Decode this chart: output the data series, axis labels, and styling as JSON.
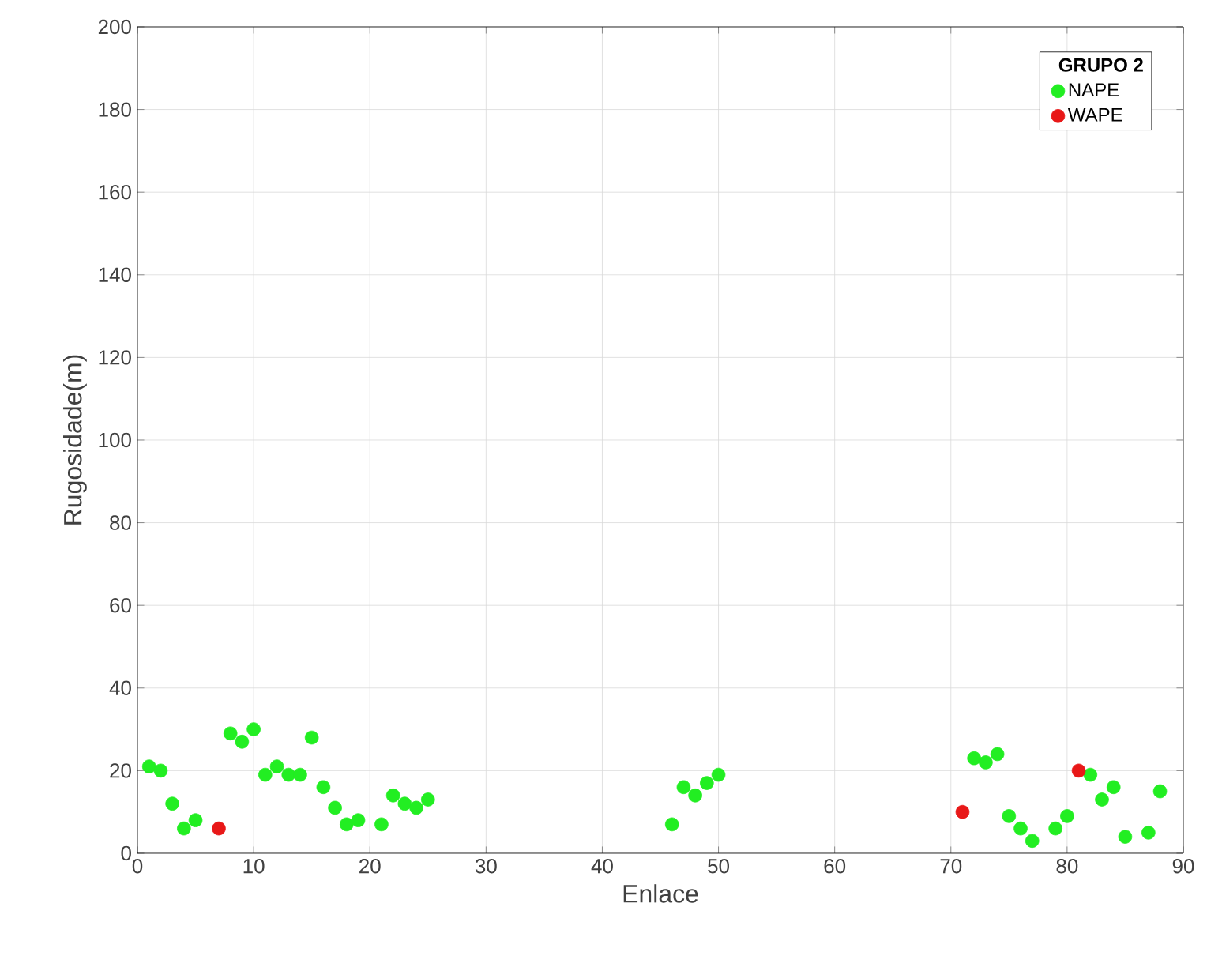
{
  "chart_data": {
    "type": "scatter",
    "xlabel": "Enlace",
    "ylabel": "Rugosidade(m)",
    "legend_title": "GRUPO 2",
    "xlim": [
      0,
      90
    ],
    "ylim": [
      0,
      200
    ],
    "xticks": [
      0,
      10,
      20,
      30,
      40,
      50,
      60,
      70,
      80,
      90
    ],
    "yticks": [
      0,
      20,
      40,
      60,
      80,
      100,
      120,
      140,
      160,
      180,
      200
    ],
    "grid": true,
    "legend": "top right",
    "marker": "circle",
    "series": [
      {
        "name": "NAPE",
        "color": "#22ee22",
        "x": [
          1,
          2,
          3,
          4,
          5,
          8,
          9,
          10,
          11,
          12,
          13,
          14,
          15,
          16,
          17,
          18,
          19,
          21,
          22,
          23,
          24,
          25,
          46,
          47,
          48,
          49,
          50,
          72,
          73,
          74,
          75,
          76,
          77,
          79,
          80,
          82,
          83,
          84,
          85,
          87,
          88
        ],
        "values": [
          21,
          20,
          12,
          6,
          8,
          29,
          27,
          30,
          19,
          21,
          19,
          19,
          28,
          16,
          11,
          7,
          8,
          7,
          14,
          12,
          11,
          13,
          7,
          16,
          14,
          17,
          19,
          23,
          22,
          24,
          9,
          6,
          3,
          6,
          9,
          19,
          13,
          16,
          4,
          5,
          15
        ]
      },
      {
        "name": "WAPE",
        "color": "#e81818",
        "x": [
          7,
          71,
          81
        ],
        "values": [
          6,
          10,
          20
        ]
      }
    ]
  }
}
